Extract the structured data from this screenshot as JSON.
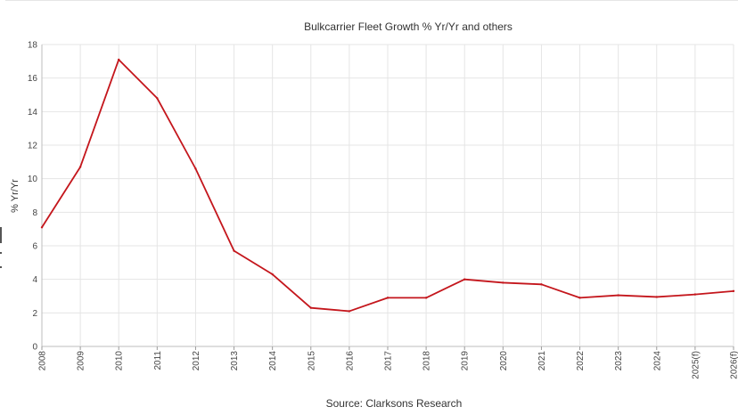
{
  "chart_data": {
    "type": "line",
    "title": "Bulkcarrier Fleet Growth % Yr/Yr and others",
    "ylabel": "% Yr/Yr",
    "xlabel": "",
    "source": "Source: Clarksons Research",
    "categories": [
      "2008",
      "2009",
      "2010",
      "2011",
      "2012",
      "2013",
      "2014",
      "2015",
      "2016",
      "2017",
      "2018",
      "2019",
      "2020",
      "2021",
      "2022",
      "2023",
      "2024",
      "2025(f)",
      "2026(f)"
    ],
    "series": [
      {
        "values": [
          7.1,
          10.7,
          17.1,
          14.8,
          10.6,
          5.7,
          4.3,
          2.3,
          2.1,
          2.9,
          2.9,
          4.0,
          3.8,
          3.7,
          2.9,
          3.05,
          2.95,
          3.1,
          3.3
        ]
      }
    ],
    "ylim": [
      0,
      18
    ],
    "yticks": [
      0,
      2,
      4,
      6,
      8,
      10,
      12,
      14,
      16,
      18
    ],
    "grid": true,
    "line_color": "#c4161c",
    "grid_color": "#e5e5e5"
  }
}
